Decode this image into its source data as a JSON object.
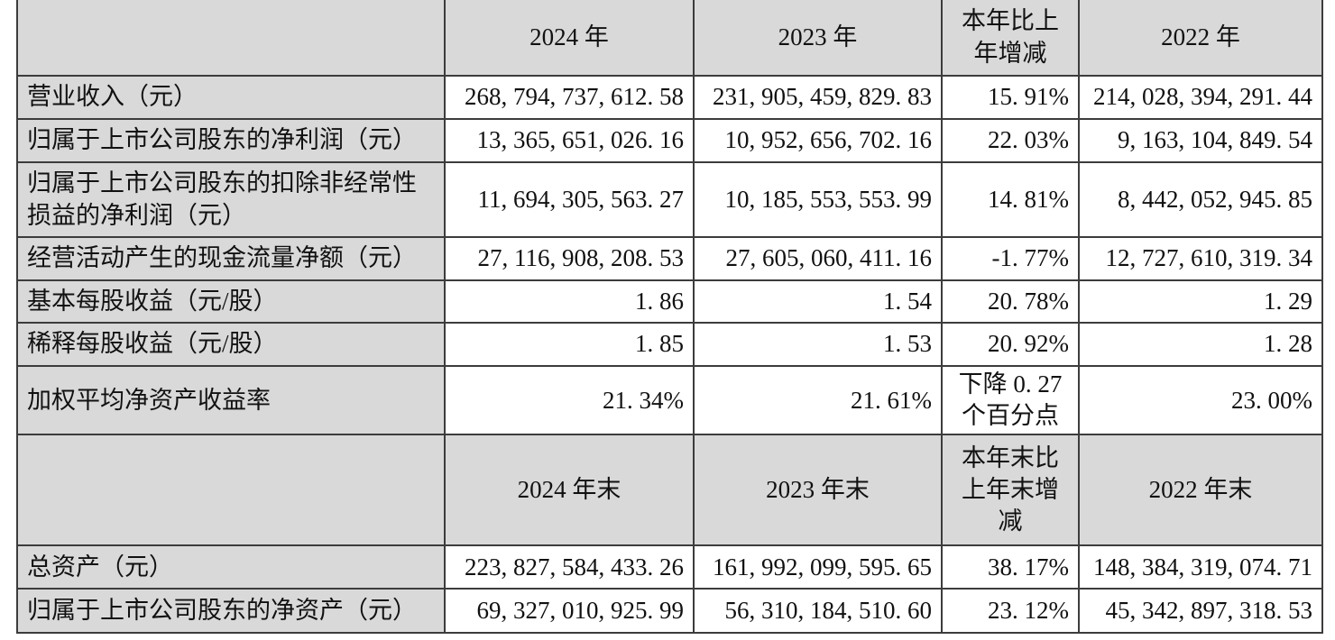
{
  "colors": {
    "header_bg": "#d9d9d9",
    "cell_bg": "#ffffff",
    "border": "#3c3c3c",
    "text": "#111111"
  },
  "table": {
    "section_annual": {
      "header": [
        "",
        "2024 年",
        "2023 年",
        "本年比上\n年增减",
        "2022 年"
      ],
      "rows": [
        {
          "label": "营业收入（元）",
          "values": [
            "268, 794, 737, 612. 58",
            "231, 905, 459, 829. 83",
            "15. 91%",
            "214, 028, 394, 291. 44"
          ]
        },
        {
          "label": "归属于上市公司股东的净利润（元）",
          "values": [
            "13, 365, 651, 026. 16",
            "10, 952, 656, 702. 16",
            "22. 03%",
            "9, 163, 104, 849. 54"
          ]
        },
        {
          "label": "归属于上市公司股东的扣除非经常性\n损益的净利润（元）",
          "values": [
            "11, 694, 305, 563. 27",
            "10, 185, 553, 553. 99",
            "14. 81%",
            "8, 442, 052, 945. 85"
          ]
        },
        {
          "label": "经营活动产生的现金流量净额（元）",
          "values": [
            "27, 116, 908, 208. 53",
            "27, 605, 060, 411. 16",
            "-1. 77%",
            "12, 727, 610, 319. 34"
          ]
        },
        {
          "label": "基本每股收益（元/股）",
          "values": [
            "1. 86",
            "1. 54",
            "20. 78%",
            "1. 29"
          ]
        },
        {
          "label": "稀释每股收益（元/股）",
          "values": [
            "1. 85",
            "1. 53",
            "20. 92%",
            "1. 28"
          ]
        },
        {
          "label": "加权平均净资产收益率",
          "values": [
            "21. 34%",
            "21. 61%",
            "下降 0. 27\n个百分点",
            "23. 00%"
          ]
        }
      ]
    },
    "section_yearend": {
      "header": [
        "",
        "2024 年末",
        "2023 年末",
        "本年末比\n上年末增\n减",
        "2022 年末"
      ],
      "rows": [
        {
          "label": "总资产（元）",
          "values": [
            "223, 827, 584, 433. 26",
            "161, 992, 099, 595. 65",
            "38. 17%",
            "148, 384, 319, 074. 71"
          ]
        },
        {
          "label": "归属于上市公司股东的净资产（元）",
          "values": [
            "69, 327, 010, 925. 99",
            "56, 310, 184, 510. 60",
            "23. 12%",
            "45, 342, 897, 318. 53"
          ]
        }
      ]
    }
  }
}
